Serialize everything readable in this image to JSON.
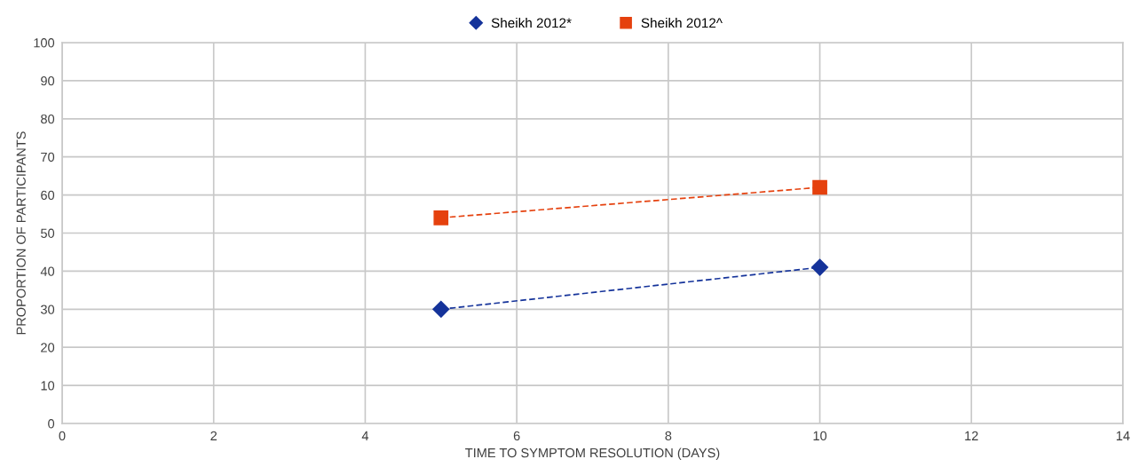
{
  "chart_data": {
    "type": "line",
    "xlabel": "TIME TO SYMPTOM RESOLUTION (DAYS)",
    "ylabel": "PROPORTION OF PARTICIPANTS",
    "series": [
      {
        "name": "Sheikh 2012*",
        "color": "#15339a",
        "marker": "diamond",
        "values": [
          30,
          41
        ]
      },
      {
        "name": "Sheikh 2012^",
        "color": "#e5410e",
        "marker": "square",
        "values": [
          54,
          62
        ]
      }
    ],
    "x": [
      5,
      10
    ],
    "xlim": [
      0,
      14
    ],
    "xticks": [
      0,
      2,
      4,
      6,
      8,
      10,
      12,
      14
    ],
    "ylim": [
      0,
      100
    ],
    "yticks": [
      0,
      10,
      20,
      30,
      40,
      50,
      60,
      70,
      80,
      90,
      100
    ],
    "grid": true,
    "legend": "top",
    "line_style": "dashed"
  }
}
